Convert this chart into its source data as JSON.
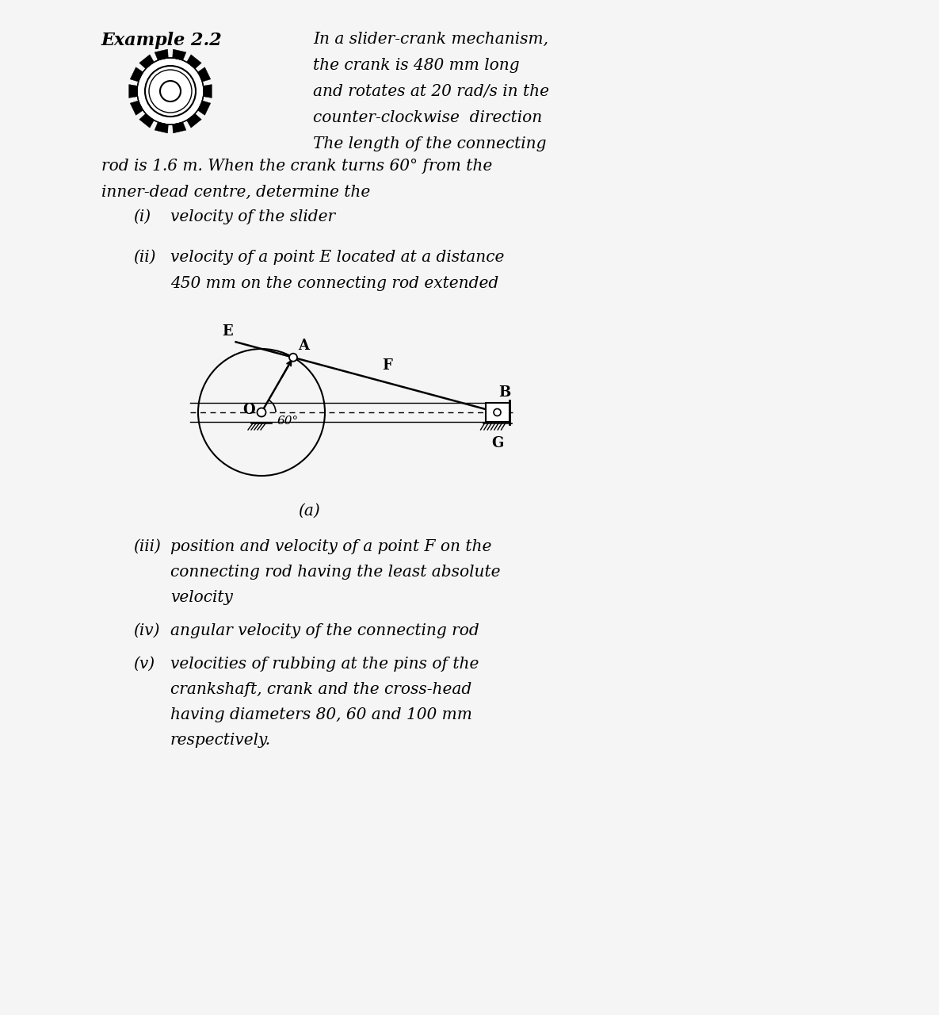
{
  "page_bg": "#f5f5f5",
  "title": "Example 2.2",
  "intro_line": "In a slider-crank mechanism,",
  "right_lines": [
    "the crank is 480 mm long",
    "and rotates at 20 rad/s in the",
    "counter-clockwise  direction",
    "The length of the connecting"
  ],
  "full_lines": [
    "rod is 1.6 m. When the crank turns 60° from the",
    "inner-dead centre, determine the"
  ],
  "item_i_num": "(i)",
  "item_i_text": "velocity of the slider",
  "item_ii_num": "(ii)",
  "item_ii_text1": "velocity of a point E located at a distance",
  "item_ii_text2": "450 mm on the connecting rod extended",
  "item_iii_num": "(iii)",
  "item_iii_lines": [
    "position and velocity of a point F on the",
    "connecting rod having the least absolute",
    "velocity"
  ],
  "item_iv_num": "(iv)",
  "item_iv_text": "angular velocity of the connecting rod",
  "item_v_num": "(v)",
  "item_v_lines": [
    "velocities of rubbing at the pins of the",
    "crankshaft, crank and the cross-head",
    "having diameters 80, 60 and 100 mm",
    "respectively."
  ],
  "diagram_caption": "(a)",
  "label_O": "O",
  "label_A": "A",
  "label_B": "B",
  "label_E": "E",
  "label_F": "F",
  "label_G": "G",
  "angle_label": "60°",
  "fs_title": 16,
  "fs_body": 14.5,
  "fs_label": 13
}
